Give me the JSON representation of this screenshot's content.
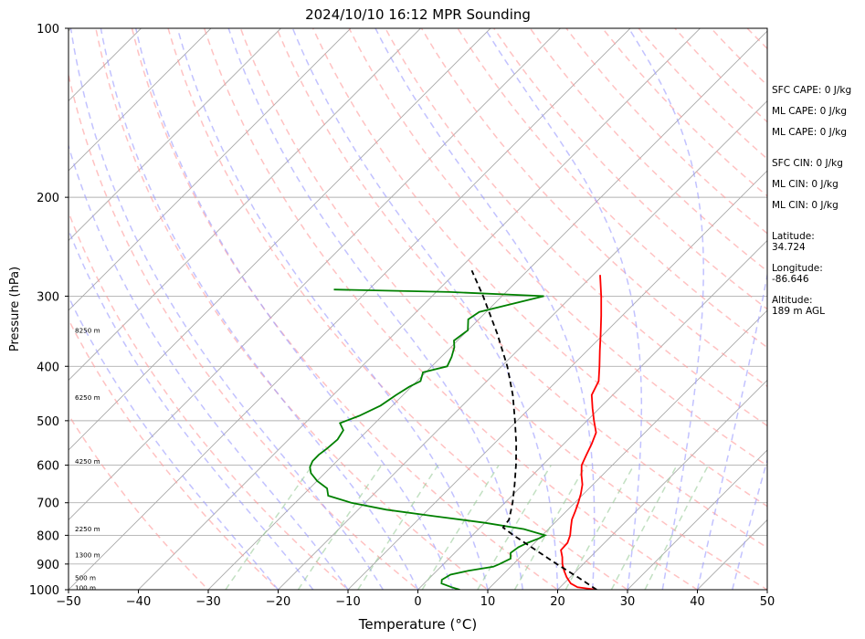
{
  "chart_data": {
    "type": "line",
    "title": "2024/10/10 16:12 MPR Sounding",
    "xlabel": "Temperature (°C)",
    "ylabel": "Pressure (hPa)",
    "xlim": [
      -50,
      50
    ],
    "ylim": [
      1000,
      100
    ],
    "y_scale": "log",
    "skew_t": true,
    "x_ticks": [
      -50,
      -40,
      -30,
      -20,
      -10,
      0,
      10,
      20,
      30,
      40,
      50
    ],
    "y_ticks": [
      1000,
      900,
      800,
      700,
      600,
      500,
      400,
      300,
      200,
      100
    ],
    "grid": true,
    "series": [
      {
        "kind": "temperature",
        "color": "#ff0000",
        "points": [
          [
            1000,
            25.6
          ],
          [
            990,
            22.5
          ],
          [
            975,
            21
          ],
          [
            950,
            19.5
          ],
          [
            925,
            18.2
          ],
          [
            900,
            17.0
          ],
          [
            875,
            16.0
          ],
          [
            850,
            14.8
          ],
          [
            825,
            14.7
          ],
          [
            800,
            14.0
          ],
          [
            775,
            13.0
          ],
          [
            750,
            12.0
          ],
          [
            725,
            11.3
          ],
          [
            700,
            10.5
          ],
          [
            675,
            9.6
          ],
          [
            650,
            8.5
          ],
          [
            625,
            7.0
          ],
          [
            600,
            5.6
          ],
          [
            575,
            4.8
          ],
          [
            550,
            4.0
          ],
          [
            525,
            3.0
          ],
          [
            500,
            1.0
          ],
          [
            475,
            -1.0
          ],
          [
            450,
            -3.0
          ],
          [
            425,
            -4.0
          ],
          [
            400,
            -6.0
          ],
          [
            375,
            -8.2
          ],
          [
            350,
            -10.5
          ],
          [
            325,
            -13.0
          ],
          [
            300,
            -15.8
          ],
          [
            275,
            -19.0
          ]
        ]
      },
      {
        "kind": "dewpoint",
        "color": "#008000",
        "points": [
          [
            1000,
            6.0
          ],
          [
            990,
            4.5
          ],
          [
            975,
            2.5
          ],
          [
            960,
            2.0
          ],
          [
            940,
            2.5
          ],
          [
            925,
            4.5
          ],
          [
            910,
            7.5
          ],
          [
            900,
            8.0
          ],
          [
            880,
            8.8
          ],
          [
            860,
            8.0
          ],
          [
            840,
            8.3
          ],
          [
            825,
            9.0
          ],
          [
            810,
            10.0
          ],
          [
            800,
            10.4
          ],
          [
            780,
            6.5
          ],
          [
            760,
            0.0
          ],
          [
            740,
            -8.0
          ],
          [
            720,
            -16.0
          ],
          [
            700,
            -22.0
          ],
          [
            680,
            -26.3
          ],
          [
            660,
            -27.5
          ],
          [
            640,
            -30.0
          ],
          [
            620,
            -32.0
          ],
          [
            605,
            -33.0
          ],
          [
            590,
            -33.5
          ],
          [
            575,
            -33.5
          ],
          [
            560,
            -33.2
          ],
          [
            540,
            -33.0
          ],
          [
            520,
            -33.5
          ],
          [
            505,
            -35.0
          ],
          [
            490,
            -33.3
          ],
          [
            470,
            -31.7
          ],
          [
            450,
            -31.0
          ],
          [
            435,
            -30.3
          ],
          [
            425,
            -29.5
          ],
          [
            410,
            -30.4
          ],
          [
            400,
            -27.8
          ],
          [
            385,
            -28.5
          ],
          [
            370,
            -29.5
          ],
          [
            360,
            -30.5
          ],
          [
            345,
            -30.0
          ],
          [
            330,
            -31.5
          ],
          [
            320,
            -31.0
          ],
          [
            300,
            -24.0
          ],
          [
            295,
            -38.0
          ],
          [
            292,
            -55.0
          ]
        ]
      },
      {
        "kind": "parcel",
        "color": "#000000",
        "points": [
          [
            1000,
            25.6
          ],
          [
            950,
            21.1
          ],
          [
            900,
            16.2
          ],
          [
            850,
            11.2
          ],
          [
            800,
            5.9
          ],
          [
            775,
            3.3
          ],
          [
            750,
            3.0
          ],
          [
            700,
            1.1
          ],
          [
            650,
            -1.2
          ],
          [
            600,
            -3.8
          ],
          [
            550,
            -6.8
          ],
          [
            500,
            -10.3
          ],
          [
            450,
            -14.3
          ],
          [
            400,
            -19.2
          ],
          [
            350,
            -25.3
          ],
          [
            300,
            -32.7
          ],
          [
            270,
            -38.0
          ]
        ]
      }
    ],
    "height_labels": [
      {
        "p": 992,
        "text": "100 m"
      },
      {
        "p": 953,
        "text": "500 m"
      },
      {
        "p": 868,
        "text": "1300 m"
      },
      {
        "p": 779,
        "text": "2250 m"
      },
      {
        "p": 591,
        "text": "4250 m"
      },
      {
        "p": 455,
        "text": "6250 m"
      },
      {
        "p": 345,
        "text": "8250 m"
      }
    ],
    "annotations": [
      "SFC CAPE: 0 J/kg",
      "ML CAPE: 0 J/kg",
      "ML CAPE: 0 J/kg",
      "SFC CIN: 0 J/kg",
      "ML CIN: 0 J/kg",
      "ML CIN: 0 J/kg",
      "Latitude:\n34.724",
      "Longitude:\n-86.646",
      "Altitude:\n189 m AGL"
    ],
    "colors": {
      "dry_adiabat": "#ff9999",
      "moist_adiabat": "#9999ff",
      "mixing_ratio": "#99cc99",
      "isotherm": "#a0a0a0"
    }
  }
}
